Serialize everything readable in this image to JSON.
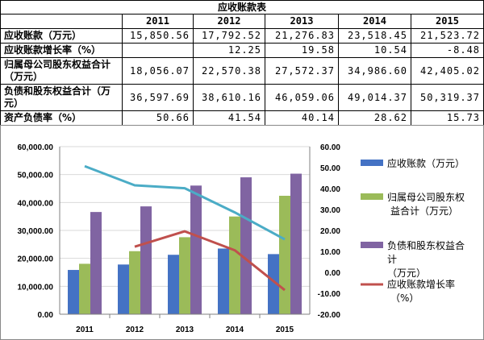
{
  "table": {
    "title": "应收账款表",
    "years": [
      "2011",
      "2012",
      "2013",
      "2014",
      "2015"
    ],
    "rows": [
      {
        "label": "应收账款（万元）",
        "values": [
          "15,850.56",
          "17,792.52",
          "21,276.83",
          "23,518.45",
          "21,523.72"
        ]
      },
      {
        "label": "应收账款增长率（%）",
        "values": [
          "",
          "12.25",
          "19.58",
          "10.54",
          "-8.48"
        ]
      },
      {
        "label": "归属母公司股东权益合计（万元）",
        "values": [
          "18,056.07",
          "22,570.38",
          "27,572.37",
          "34,986.60",
          "42,405.02"
        ]
      },
      {
        "label": "负债和股东权益合计（万元）",
        "values": [
          "36,597.69",
          "38,610.16",
          "46,059.06",
          "49,014.37",
          "50,319.37"
        ]
      },
      {
        "label": "资产负债率（%）",
        "values": [
          "50.66",
          "41.54",
          "40.14",
          "28.62",
          "15.73"
        ]
      }
    ]
  },
  "chart_data": {
    "type": "bar",
    "categories": [
      "2011",
      "2012",
      "2013",
      "2014",
      "2015"
    ],
    "series": [
      {
        "name": "应收账款（万元）",
        "kind": "bar",
        "axis": "left",
        "color": "#4472C4",
        "values": [
          15850.56,
          17792.52,
          21276.83,
          23518.45,
          21523.72
        ]
      },
      {
        "name": "归属母公司股东权益合计（万元）",
        "kind": "bar",
        "axis": "left",
        "color": "#9BBB59",
        "values": [
          18056.07,
          22570.38,
          27572.37,
          34986.6,
          42405.02
        ]
      },
      {
        "name": "负债和股东权益合计（万元）",
        "kind": "bar",
        "axis": "left",
        "color": "#8064A2",
        "values": [
          36597.69,
          38610.16,
          46059.06,
          49014.37,
          50319.37
        ]
      },
      {
        "name": "资产负债率（%）",
        "kind": "line",
        "axis": "right",
        "color": "#4BACC6",
        "values": [
          50.66,
          41.54,
          40.14,
          28.62,
          15.73
        ]
      },
      {
        "name": "应收账款增长率（%）",
        "kind": "line",
        "axis": "right",
        "color": "#C0504D",
        "values": [
          null,
          12.25,
          19.58,
          10.54,
          -8.48
        ]
      }
    ],
    "left_axis": {
      "min": 0,
      "max": 60000,
      "step": 10000,
      "ticks": [
        "0.00",
        "10,000.00",
        "20,000.00",
        "30,000.00",
        "40,000.00",
        "50,000.00",
        "60,000.00"
      ]
    },
    "right_axis": {
      "min": -20,
      "max": 60,
      "step": 10,
      "ticks": [
        "-20.00",
        "-10.00",
        "0.00",
        "10.00",
        "20.00",
        "30.00",
        "40.00",
        "50.00",
        "60.00"
      ]
    },
    "legend": [
      {
        "line1": "应收账款（万元）",
        "line2": "",
        "line3": "",
        "color": "#4472C4",
        "shape": "box"
      },
      {
        "line1": "归属母公司股东权",
        "line2": "益合计（万元）",
        "line3": "",
        "color": "#9BBB59",
        "shape": "box"
      },
      {
        "line1": "负债和股东权益合",
        "line2": "计",
        "line3": "（万元）",
        "color": "#8064A2",
        "shape": "box"
      },
      {
        "line1": "应收账款增长率",
        "line2": "（%）",
        "line3": "",
        "color": "#C0504D",
        "shape": "line"
      }
    ]
  }
}
